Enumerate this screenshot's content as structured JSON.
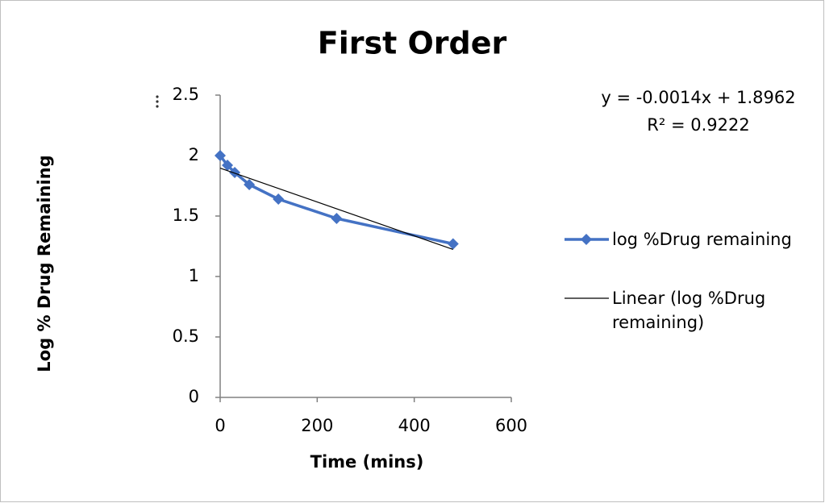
{
  "chart_data": {
    "type": "line",
    "title": "First Order",
    "x_label": "Time (mins)",
    "y_label": "Log % Drug Remaining",
    "annotations": [
      "y = -0.0014x + 1.8962",
      "R² = 0.9222"
    ],
    "xlim": [
      0,
      600
    ],
    "xticks": [
      0,
      200,
      400,
      600
    ],
    "ylim": [
      0,
      2.5
    ],
    "yticks": [
      0,
      0.5,
      1,
      1.5,
      2,
      2.5
    ],
    "grid": false,
    "legend": "right",
    "series": [
      {
        "name": "log %Drug remaining",
        "color": "#4472c4",
        "marker": "diamond",
        "x": [
          0,
          15,
          30,
          60,
          120,
          240,
          480
        ],
        "values": [
          2.0,
          1.92,
          1.86,
          1.76,
          1.64,
          1.48,
          1.27
        ]
      },
      {
        "name": "Linear (log %Drug remaining)",
        "color": "#000000",
        "marker": "none",
        "x": [
          0,
          480
        ],
        "values": [
          1.896,
          1.224
        ]
      }
    ]
  }
}
